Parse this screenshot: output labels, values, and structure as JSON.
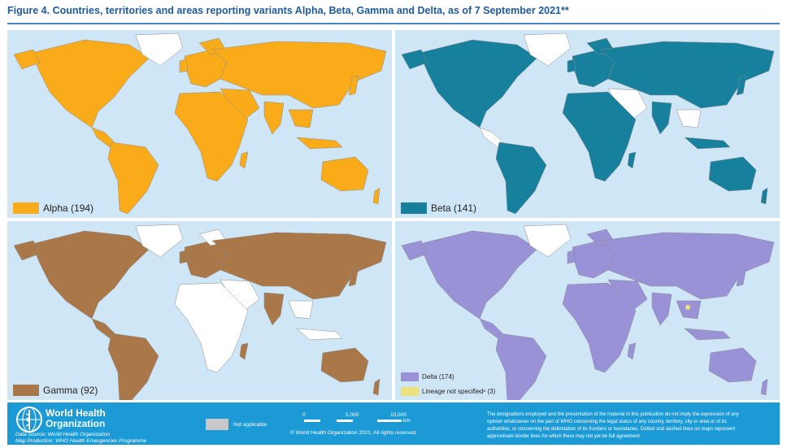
{
  "figure": {
    "title": "Figure 4. Countries, territories and areas reporting variants Alpha, Beta, Gamma and Delta, as of 7 September 2021**"
  },
  "colors": {
    "ocean": "#cfe6f7",
    "alpha": "#f9ab1a",
    "beta": "#17809d",
    "gamma": "#a97748",
    "delta": "#9a92d7",
    "lineage_not_specified": "#ede07e",
    "not_applicable": "#c8c8c8",
    "no_report": "#ffffff",
    "footer": "#1b9ad6"
  },
  "panels": {
    "alpha": {
      "legend": "Alpha (194)"
    },
    "beta": {
      "legend": "Beta (141)"
    },
    "gamma": {
      "legend": "Gamma (92)"
    },
    "delta": {
      "legend": "Delta (174)",
      "legend_secondary": "Lineage not specified¹ (3)"
    }
  },
  "footer": {
    "org_line1": "World Health",
    "org_line2": "Organization",
    "data_source": "Data Source: World Health Organization",
    "map_production": "Map Production: WHO Health Emergencies Programme",
    "not_applicable": "Not applicable",
    "scale_labels": [
      "0",
      "5,000",
      "10,000"
    ],
    "scale_unit": "km",
    "copyright": "© World Health Organization 2021. All rights reserved.",
    "disclaimer_lines": [
      "The designations employed and the presentation of the material in this publication do not imply the expression of any",
      "opinion whatsoever on the part of WHO concerning the legal status of any country, territory, city or area or of its",
      "authorities, or concerning the delimitation of its frontiers or boundaries. Dotted and dashed lines on maps represent",
      "approximate border lines for which there may not yet be full agreement."
    ]
  }
}
